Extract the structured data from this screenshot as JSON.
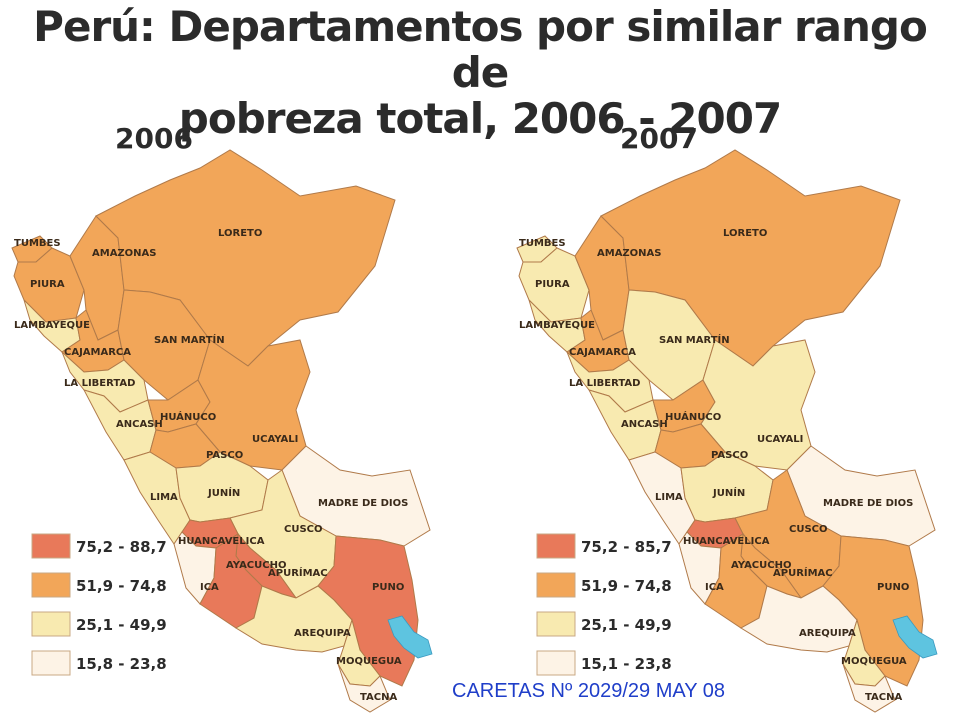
{
  "title": {
    "line1": "Perú: Departamentos por similar rango de",
    "line2": "pobreza total, 2006 - 2007"
  },
  "colors": {
    "high": "#e8795a",
    "upper": "#f2a659",
    "middle": "#f8eab0",
    "low": "#fdf3e6",
    "lake": "#5ec4e0",
    "border": "#b07a4a"
  },
  "maps": [
    {
      "year": "2006",
      "legend": [
        "75,2 - 88,7",
        "51,9 - 74,8",
        "25,1 - 49,9",
        "15,8 - 23,8"
      ],
      "departments": [
        {
          "name": "TUMBES",
          "class": "upper"
        },
        {
          "name": "PIURA",
          "class": "upper"
        },
        {
          "name": "LAMBAYEQUE",
          "class": "middle"
        },
        {
          "name": "AMAZONAS",
          "class": "upper"
        },
        {
          "name": "LORETO",
          "class": "upper"
        },
        {
          "name": "CAJAMARCA",
          "class": "upper"
        },
        {
          "name": "SAN MARTÍN",
          "class": "upper"
        },
        {
          "name": "LA LIBERTAD",
          "class": "middle"
        },
        {
          "name": "ANCASH",
          "class": "middle"
        },
        {
          "name": "HUÁNUCO",
          "class": "upper"
        },
        {
          "name": "UCAYALI",
          "class": "upper"
        },
        {
          "name": "PASCO",
          "class": "upper"
        },
        {
          "name": "LIMA",
          "class": "middle"
        },
        {
          "name": "JUNÍN",
          "class": "middle"
        },
        {
          "name": "MADRE DE DIOS",
          "class": "low"
        },
        {
          "name": "CUSCO",
          "class": "middle"
        },
        {
          "name": "HUANCAVELICA",
          "class": "high"
        },
        {
          "name": "ICA",
          "class": "low"
        },
        {
          "name": "APURÍMAC",
          "class": "high"
        },
        {
          "name": "AYACUCHO",
          "class": "high"
        },
        {
          "name": "PUNO",
          "class": "high"
        },
        {
          "name": "AREQUIPA",
          "class": "middle"
        },
        {
          "name": "MOQUEGUA",
          "class": "middle"
        },
        {
          "name": "TACNA",
          "class": "low"
        }
      ]
    },
    {
      "year": "2007",
      "legend": [
        "75,2 - 85,7",
        "51,9 - 74,8",
        "25,1 - 49,9",
        "15,1 - 23,8"
      ],
      "departments": [
        {
          "name": "TUMBES",
          "class": "middle"
        },
        {
          "name": "PIURA",
          "class": "middle"
        },
        {
          "name": "LAMBAYEQUE",
          "class": "middle"
        },
        {
          "name": "AMAZONAS",
          "class": "upper"
        },
        {
          "name": "LORETO",
          "class": "upper"
        },
        {
          "name": "CAJAMARCA",
          "class": "upper"
        },
        {
          "name": "SAN MARTÍN",
          "class": "middle"
        },
        {
          "name": "LA LIBERTAD",
          "class": "middle"
        },
        {
          "name": "ANCASH",
          "class": "middle"
        },
        {
          "name": "HUÁNUCO",
          "class": "upper"
        },
        {
          "name": "UCAYALI",
          "class": "middle"
        },
        {
          "name": "PASCO",
          "class": "upper"
        },
        {
          "name": "LIMA",
          "class": "low"
        },
        {
          "name": "JUNÍN",
          "class": "middle"
        },
        {
          "name": "MADRE DE DIOS",
          "class": "low"
        },
        {
          "name": "CUSCO",
          "class": "upper"
        },
        {
          "name": "HUANCAVELICA",
          "class": "high"
        },
        {
          "name": "ICA",
          "class": "low"
        },
        {
          "name": "APURÍMAC",
          "class": "upper"
        },
        {
          "name": "AYACUCHO",
          "class": "upper"
        },
        {
          "name": "PUNO",
          "class": "upper"
        },
        {
          "name": "AREQUIPA",
          "class": "low"
        },
        {
          "name": "MOQUEGUA",
          "class": "middle"
        },
        {
          "name": "TACNA",
          "class": "low"
        }
      ]
    }
  ],
  "credit": "CARETAS Nº 2029/29 MAY 08"
}
